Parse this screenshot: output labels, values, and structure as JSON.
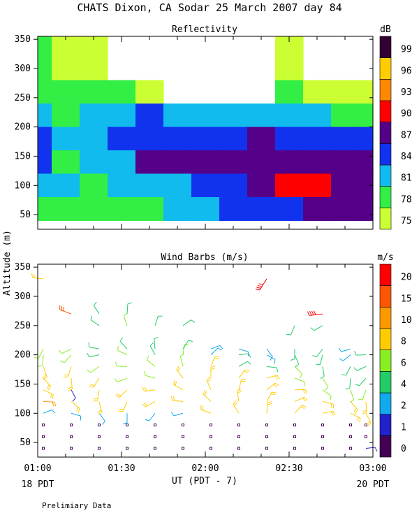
{
  "title": "CHATS Dixon, CA   Sodar   25 March 2007   day  84",
  "ylabel": "Altitude (m)",
  "xlabel": "UT  (PDT - 7)",
  "x_ticks": [
    "01:00",
    "01:30",
    "02:00",
    "02:30",
    "03:00"
  ],
  "x_start_note": "18 PDT",
  "x_end_note": "20 PDT",
  "footer": "Prelimiary Data",
  "colors": {
    "reflectivity_levels": [
      "#ccff33",
      "#33ee44",
      "#11bbee",
      "#1133ee",
      "#550088",
      "#ff0000",
      "#ff8800",
      "#ffcc00",
      "#330033"
    ],
    "wind_levels": [
      "#440055",
      "#2222cc",
      "#11aaee",
      "#22cc66",
      "#88ee22",
      "#ffcc00",
      "#ff9900",
      "#ff5500",
      "#ff0000"
    ]
  },
  "chart_data": [
    {
      "type": "heatmap",
      "title": "Reflectivity",
      "colorbar_title": "dB",
      "colorbar_ticks": [
        "75",
        "78",
        "81",
        "84",
        "87",
        "90",
        "93",
        "96",
        "99"
      ],
      "x_time_range": [
        "01:00",
        "03:00"
      ],
      "ylim": [
        25,
        355
      ],
      "y_ticks": [
        50,
        100,
        150,
        200,
        250,
        300,
        350
      ],
      "x_minutes": [
        0,
        10,
        20,
        30,
        40,
        50,
        60,
        70,
        80,
        90,
        100,
        110,
        120
      ],
      "y_levels_m": [
        340,
        300,
        260,
        220,
        180,
        140,
        100,
        60
      ],
      "values_db_by_altitude": [
        [
          77,
          76,
          75,
          null,
          null,
          null,
          null,
          null,
          null,
          76,
          null,
          null,
          null
        ],
        [
          77,
          76,
          76,
          null,
          null,
          null,
          null,
          null,
          null,
          76,
          null,
          null,
          null
        ],
        [
          77,
          77,
          77,
          78,
          76,
          null,
          null,
          null,
          null,
          77,
          76,
          76,
          75
        ],
        [
          82,
          78,
          81,
          82,
          83,
          82,
          82,
          81,
          81,
          81,
          80,
          79,
          79
        ],
        [
          85,
          80,
          81,
          84,
          85,
          85,
          85,
          85,
          86,
          85,
          85,
          84,
          84
        ],
        [
          85,
          78,
          80,
          82,
          86,
          87,
          87,
          87,
          87,
          87,
          87,
          86,
          86
        ],
        [
          80,
          80,
          79,
          80,
          81,
          82,
          84,
          85,
          86,
          90,
          90,
          88,
          87
        ],
        [
          78,
          78,
          78,
          79,
          79,
          80,
          82,
          83,
          84,
          85,
          86,
          87,
          87
        ]
      ]
    },
    {
      "type": "scatter",
      "title": "Wind Barbs (m/s)",
      "colorbar_title": "m/s",
      "colorbar_ticks": [
        "0",
        "1",
        "2",
        "4",
        "6",
        "8",
        "10",
        "15",
        "20"
      ],
      "x_time_range": [
        "01:00",
        "03:00"
      ],
      "ylim": [
        25,
        355
      ],
      "y_ticks": [
        50,
        100,
        150,
        200,
        250,
        300,
        350
      ],
      "x_minutes": [
        2,
        12,
        22,
        32,
        42,
        52,
        62,
        72,
        82,
        92,
        102,
        112,
        120
      ],
      "profiles": [
        {
          "minute": 2,
          "speeds_ms": [
            0.5,
            0.5,
            0.5,
            2,
            10,
            9,
            9,
            9,
            7,
            6,
            null,
            null,
            8
          ]
        },
        {
          "minute": 12,
          "speeds_ms": [
            0.5,
            0.5,
            0.5,
            3,
            9,
            1,
            9,
            9,
            6,
            6,
            null,
            15,
            null
          ]
        },
        {
          "minute": 22,
          "speeds_ms": [
            0.5,
            0.5,
            0.5,
            3,
            8,
            8,
            8,
            7,
            5,
            5,
            5,
            4,
            null
          ]
        },
        {
          "minute": 32,
          "speeds_ms": [
            0.5,
            0.5,
            0.5,
            2,
            8,
            8,
            7,
            6,
            6,
            5,
            6,
            5,
            null
          ]
        },
        {
          "minute": 42,
          "speeds_ms": [
            0.5,
            0.5,
            0.5,
            2,
            8,
            8,
            7,
            6,
            5,
            5,
            4,
            null,
            null
          ]
        },
        {
          "minute": 52,
          "speeds_ms": [
            0.5,
            0.5,
            0.5,
            2,
            8,
            8,
            8,
            7,
            6,
            5,
            4,
            null,
            null
          ]
        },
        {
          "minute": 62,
          "speeds_ms": [
            0.5,
            0.5,
            0.5,
            8,
            8,
            8,
            8,
            8,
            3,
            3,
            null,
            null,
            null
          ]
        },
        {
          "minute": 72,
          "speeds_ms": [
            0.5,
            0.5,
            0.5,
            8,
            8,
            8,
            8,
            5,
            4,
            3,
            null,
            null,
            null
          ]
        },
        {
          "minute": 82,
          "speeds_ms": [
            0.5,
            0.5,
            0.5,
            8,
            8,
            8,
            8,
            5,
            3,
            3,
            null,
            null,
            20
          ]
        },
        {
          "minute": 92,
          "speeds_ms": [
            0.5,
            0.5,
            0.5,
            8,
            8,
            8,
            7,
            6,
            5,
            4,
            4,
            null,
            null
          ]
        },
        {
          "minute": 102,
          "speeds_ms": [
            0.5,
            0.5,
            0.5,
            8,
            8,
            7,
            6,
            5,
            4,
            4,
            4,
            20,
            null
          ]
        },
        {
          "minute": 112,
          "speeds_ms": [
            0.5,
            0.5,
            0.5,
            8,
            8,
            6,
            5,
            4,
            3,
            3,
            null,
            null,
            null
          ]
        },
        {
          "minute": 120,
          "speeds_ms": [
            1,
            0.5,
            0.5,
            8,
            8,
            6,
            5,
            4,
            4,
            null,
            null,
            null,
            null
          ]
        }
      ],
      "profile_altitudes_m": [
        40,
        60,
        80,
        100,
        120,
        140,
        160,
        180,
        200,
        210,
        250,
        270,
        330
      ]
    }
  ]
}
